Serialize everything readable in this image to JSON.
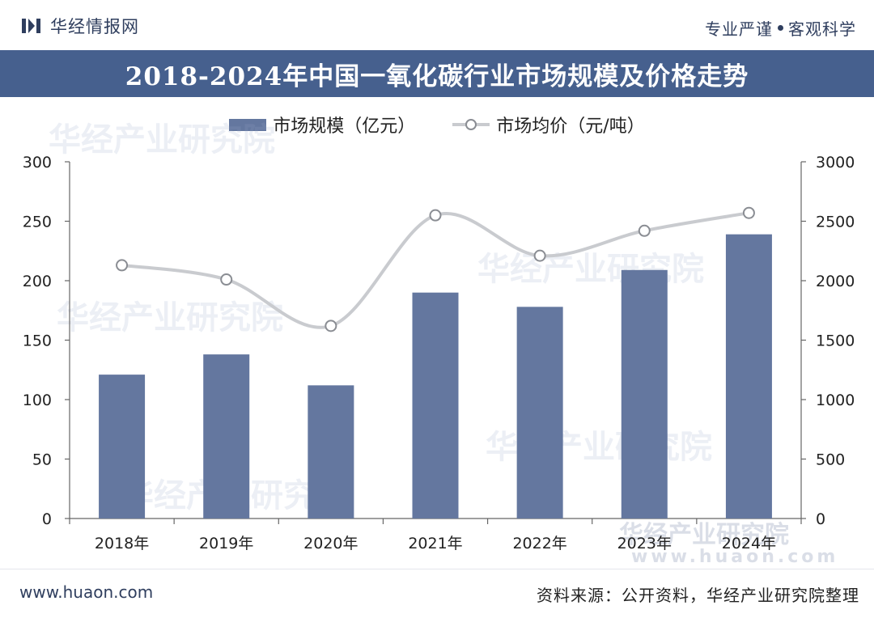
{
  "header": {
    "brand": "华经情报网",
    "slogan_left": "专业严谨",
    "slogan_right": "客观科学"
  },
  "title": "2018-2024年中国一氧化碳行业市场规模及价格走势",
  "legend": {
    "bar_label": "市场规模（亿元）",
    "line_label": "市场均价（元/吨）"
  },
  "colors": {
    "bar": "#64779f",
    "line": "#c9cbcf",
    "marker_fill": "#ffffff",
    "marker_stroke": "#8a8d93",
    "title_bg": "#46608e"
  },
  "chart_data": {
    "type": "bar+line",
    "title": "2018-2024年中国一氧化碳行业市场规模及价格走势",
    "categories": [
      "2018年",
      "2019年",
      "2020年",
      "2021年",
      "2022年",
      "2023年",
      "2024年"
    ],
    "series": [
      {
        "name": "市场规模（亿元）",
        "type": "bar",
        "axis": "left",
        "values": [
          121,
          138,
          112,
          190,
          178,
          209,
          239
        ]
      },
      {
        "name": "市场均价（元/吨）",
        "type": "line",
        "axis": "right",
        "values": [
          2130,
          2010,
          1620,
          2550,
          2210,
          2420,
          2570
        ]
      }
    ],
    "y_left": {
      "min": 0,
      "max": 300,
      "ticks": [
        "0",
        "50",
        "100",
        "150",
        "200",
        "250",
        "300"
      ]
    },
    "y_right": {
      "min": 0,
      "max": 3000,
      "ticks": [
        "0",
        "500",
        "1000",
        "1500",
        "2000",
        "2500",
        "3000"
      ]
    },
    "grid": false,
    "legend_position": "top-center"
  },
  "watermark": {
    "text": "华经产业研究院",
    "site": "www.huaon.com"
  },
  "footer": {
    "site": "www.huaon.com",
    "source": "资料来源：公开资料，华经产业研究院整理"
  }
}
